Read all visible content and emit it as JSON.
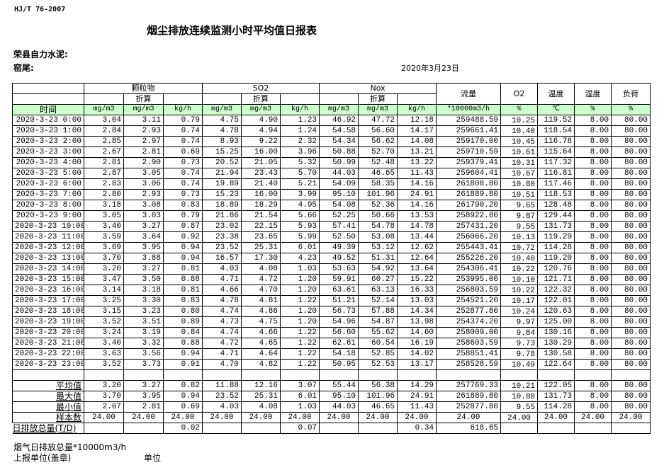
{
  "header": {
    "standard": "HJ/T  76-2007",
    "title": "烟尘排放连续监测小时平均值日报表",
    "company": "荣县自力水泥:",
    "kiln": "窑尾:",
    "date": "2020年3月23日"
  },
  "table": {
    "groups": {
      "particulate": "颗粒物",
      "so2": "SO2",
      "nox": "Nox",
      "flow": "流量",
      "o2": "O2",
      "temp": "温度",
      "humidity": "湿度",
      "load": "负荷"
    },
    "converted": "折算",
    "time_label": "时间",
    "units": [
      "mg/m3",
      "mg/m3",
      "kg/h",
      "mg/m3",
      "mg/m3",
      "kg/h",
      "mg/m3",
      "mg/m3",
      "kg/h",
      "*10000m3/h",
      "%",
      "℃",
      "%",
      "%"
    ],
    "rows": [
      [
        "2020-3-23 0:00",
        "3.04",
        "3.11",
        "0.79",
        "4.75",
        "4.90",
        "1.23",
        "46.92",
        "47.72",
        "12.18",
        "259488.59",
        "10.25",
        "119.52",
        "8.00",
        "80.00"
      ],
      [
        "2020-3-23 1:00",
        "2.84",
        "2.93",
        "0.74",
        "4.78",
        "4.94",
        "1.24",
        "54.58",
        "56.60",
        "14.17",
        "259661.41",
        "10.40",
        "118.54",
        "8.00",
        "80.00"
      ],
      [
        "2020-3-23 2:00",
        "2.85",
        "2.97",
        "0.74",
        "8.93",
        "9.22",
        "2.32",
        "54.34",
        "56.62",
        "14.08",
        "259170.00",
        "10.45",
        "116.78",
        "8.00",
        "80.00"
      ],
      [
        "2020-3-23 3:00",
        "2.67",
        "2.81",
        "0.69",
        "15.25",
        "16.00",
        "3.96",
        "50.88",
        "52.70",
        "13.21",
        "259710.59",
        "10.61",
        "115.64",
        "8.00",
        "80.00"
      ],
      [
        "2020-3-23 4:00",
        "2.81",
        "2.90",
        "0.73",
        "20.52",
        "21.05",
        "5.32",
        "50.99",
        "52.48",
        "13.22",
        "259379.41",
        "10.31",
        "117.32",
        "8.00",
        "80.00"
      ],
      [
        "2020-3-23 5:00",
        "2.87",
        "3.05",
        "0.74",
        "21.94",
        "23.43",
        "5.70",
        "44.03",
        "46.65",
        "11.43",
        "259604.41",
        "10.67",
        "116.81",
        "8.00",
        "80.00"
      ],
      [
        "2020-3-23 6:00",
        "2.83",
        "3.06",
        "0.74",
        "19.89",
        "21.40",
        "5.21",
        "54.09",
        "58.35",
        "14.16",
        "261808.80",
        "10.80",
        "117.46",
        "8.00",
        "80.00"
      ],
      [
        "2020-3-23 7:00",
        "2.80",
        "2.93",
        "0.73",
        "15.23",
        "16.00",
        "3.99",
        "95.10",
        "101.96",
        "24.91",
        "261889.80",
        "10.51",
        "118.53",
        "8.00",
        "80.00"
      ],
      [
        "2020-3-23 8:00",
        "3.18",
        "3.08",
        "0.83",
        "18.89",
        "18.29",
        "4.95",
        "54.08",
        "52.36",
        "14.16",
        "261790.20",
        "9.65",
        "128.48",
        "8.00",
        "80.00"
      ],
      [
        "2020-3-23 9:00",
        "3.05",
        "3.03",
        "0.79",
        "21.86",
        "21.54",
        "5.66",
        "52.25",
        "50.66",
        "13.53",
        "258922.80",
        "9.87",
        "129.44",
        "8.00",
        "80.00"
      ],
      [
        "2020-3-23 10:00",
        "3.40",
        "3.27",
        "0.87",
        "23.02",
        "22.15",
        "5.93",
        "57.41",
        "54.78",
        "14.78",
        "257431.20",
        "9.55",
        "131.73",
        "8.00",
        "80.00"
      ],
      [
        "2020-3-23 11:00",
        "3.59",
        "3.64",
        "0.92",
        "23.38",
        "23.65",
        "5.99",
        "52.50",
        "53.08",
        "13.44",
        "256066.20",
        "10.13",
        "119.29",
        "8.00",
        "80.00"
      ],
      [
        "2020-3-23 12:00",
        "3.69",
        "3.95",
        "0.94",
        "23.52",
        "25.31",
        "6.01",
        "49.39",
        "53.12",
        "12.62",
        "255443.41",
        "10.72",
        "114.28",
        "8.00",
        "80.00"
      ],
      [
        "2020-3-23 13:00",
        "3.70",
        "3.88",
        "0.94",
        "16.57",
        "17.30",
        "4.23",
        "49.52",
        "51.31",
        "12.64",
        "255226.20",
        "10.40",
        "119.20",
        "8.00",
        "80.00"
      ],
      [
        "2020-3-23 14:00",
        "3.20",
        "3.27",
        "0.81",
        "4.03",
        "4.08",
        "1.03",
        "53.63",
        "54.92",
        "13.64",
        "254306.41",
        "10.22",
        "120.76",
        "8.00",
        "80.00"
      ],
      [
        "2020-3-23 15:00",
        "3.47",
        "3.50",
        "0.88",
        "4.71",
        "4.72",
        "1.20",
        "59.91",
        "60.27",
        "15.22",
        "253995.00",
        "10.10",
        "121.71",
        "8.00",
        "80.00"
      ],
      [
        "2020-3-23 16:00",
        "3.14",
        "3.18",
        "0.81",
        "4.66",
        "4.70",
        "1.20",
        "63.61",
        "63.13",
        "16.33",
        "256803.59",
        "10.22",
        "122.32",
        "8.00",
        "80.00"
      ],
      [
        "2020-3-23 17:00",
        "3.25",
        "3.30",
        "0.83",
        "4.78",
        "4.81",
        "1.22",
        "51.21",
        "52.14",
        "13.03",
        "254521.20",
        "10.17",
        "122.01",
        "8.00",
        "80.00"
      ],
      [
        "2020-3-23 18:00",
        "3.15",
        "3.23",
        "0.80",
        "4.74",
        "4.86",
        "1.20",
        "56.73",
        "57.88",
        "14.34",
        "252877.80",
        "10.24",
        "120.63",
        "8.00",
        "80.00"
      ],
      [
        "2020-3-23 19:00",
        "3.52",
        "3.51",
        "0.89",
        "4.73",
        "4.75",
        "1.20",
        "54.96",
        "54.87",
        "13.98",
        "254374.20",
        "9.97",
        "125.00",
        "8.00",
        "80.00"
      ],
      [
        "2020-3-23 20:00",
        "3.24",
        "3.19",
        "0.84",
        "4.74",
        "4.66",
        "1.22",
        "56.60",
        "55.62",
        "14.60",
        "258009.00",
        "9.84",
        "130.16",
        "8.00",
        "80.00"
      ],
      [
        "2020-3-23 21:00",
        "3.40",
        "3.32",
        "0.88",
        "4.72",
        "4.65",
        "1.22",
        "62.61",
        "60.54",
        "16.19",
        "258603.59",
        "9.73",
        "130.29",
        "8.00",
        "80.00"
      ],
      [
        "2020-3-23 22:00",
        "3.63",
        "3.56",
        "0.94",
        "4.71",
        "4.64",
        "1.22",
        "54.18",
        "52.85",
        "14.02",
        "258851.41",
        "9.78",
        "130.58",
        "8.00",
        "80.00"
      ],
      [
        "2020-3-23 23:00",
        "3.52",
        "3.73",
        "0.91",
        "4.70",
        "4.82",
        "1.22",
        "50.95",
        "52.53",
        "13.17",
        "258528.59",
        "10.49",
        "122.64",
        "8.00",
        "80.00"
      ]
    ],
    "summary": [
      [
        "平均值",
        "3.20",
        "3.27",
        "0.82",
        "11.88",
        "12.16",
        "3.07",
        "55.44",
        "56.38",
        "14.29",
        "257769.33",
        "10.21",
        "122.05",
        "8.00",
        "80.00"
      ],
      [
        "最大值",
        "3.70",
        "3.95",
        "0.94",
        "23.52",
        "25.31",
        "6.01",
        "95.10",
        "101.96",
        "24.91",
        "261889.80",
        "10.80",
        "131.73",
        "8.00",
        "80.00"
      ],
      [
        "最小值",
        "2.67",
        "2.81",
        "0.69",
        "4.03",
        "4.08",
        "1.03",
        "44.03",
        "46.65",
        "11.43",
        "252877.80",
        "9.55",
        "114.28",
        "8.00",
        "80.00"
      ],
      [
        "样本数",
        "24.00",
        "24.00",
        "24.00",
        "24.00",
        "24.00",
        "24.00",
        "24.00",
        "24.00",
        "24.00",
        "24.00",
        "24.00",
        "24.00",
        "24.00",
        "24.00"
      ],
      [
        "日排放总量(T/D)",
        "",
        "",
        "0.02",
        "",
        "",
        "0.07",
        "",
        "",
        "0.34",
        "618.65",
        "",
        "",
        "",
        ""
      ]
    ]
  },
  "footer": {
    "flue_total": "烟气日排放总量*10000m3/h",
    "reporter": "上报单位(盖章)",
    "unit": "单位"
  }
}
